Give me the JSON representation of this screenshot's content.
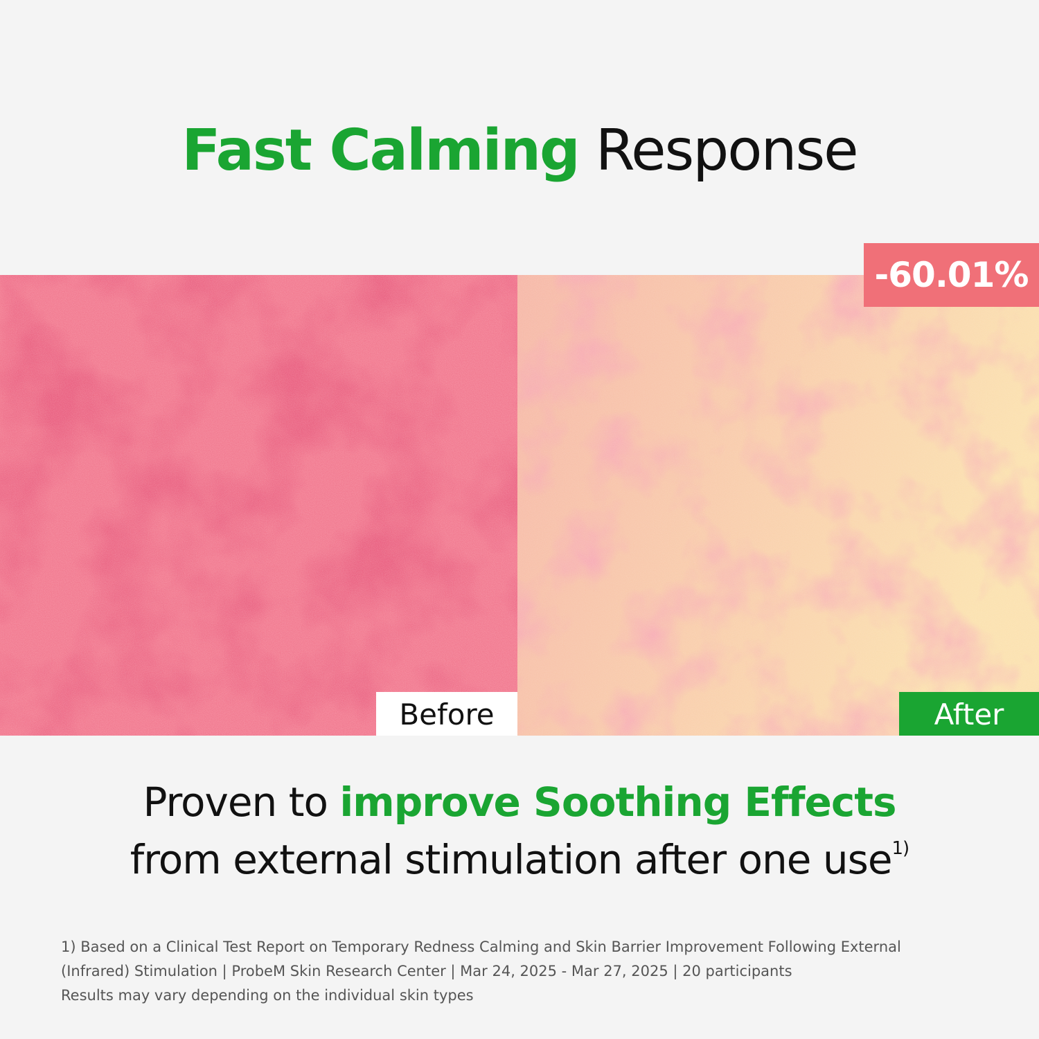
{
  "title": {
    "highlight": "Fast Calming",
    "rest": "Response"
  },
  "badge": "-60.01%",
  "panels": [
    {
      "label": "Before"
    },
    {
      "label": "After"
    }
  ],
  "headline": {
    "line1": {
      "plain": "Proven to",
      "highlight": "improve Soothing Effects"
    },
    "line2": {
      "text": "from external stimulation after one use",
      "superscript": "1)"
    }
  },
  "footnote": {
    "lines": [
      "1) Based on a Clinical Test Report on Temporary Redness Calming and Skin Barrier Improvement Following External",
      "(Infrared) Stimulation | ProbeM Skin Research Center | Mar 24, 2025 - Mar 27, 2025 | 20 participants",
      "Results may vary depending on the individual skin types"
    ]
  }
}
